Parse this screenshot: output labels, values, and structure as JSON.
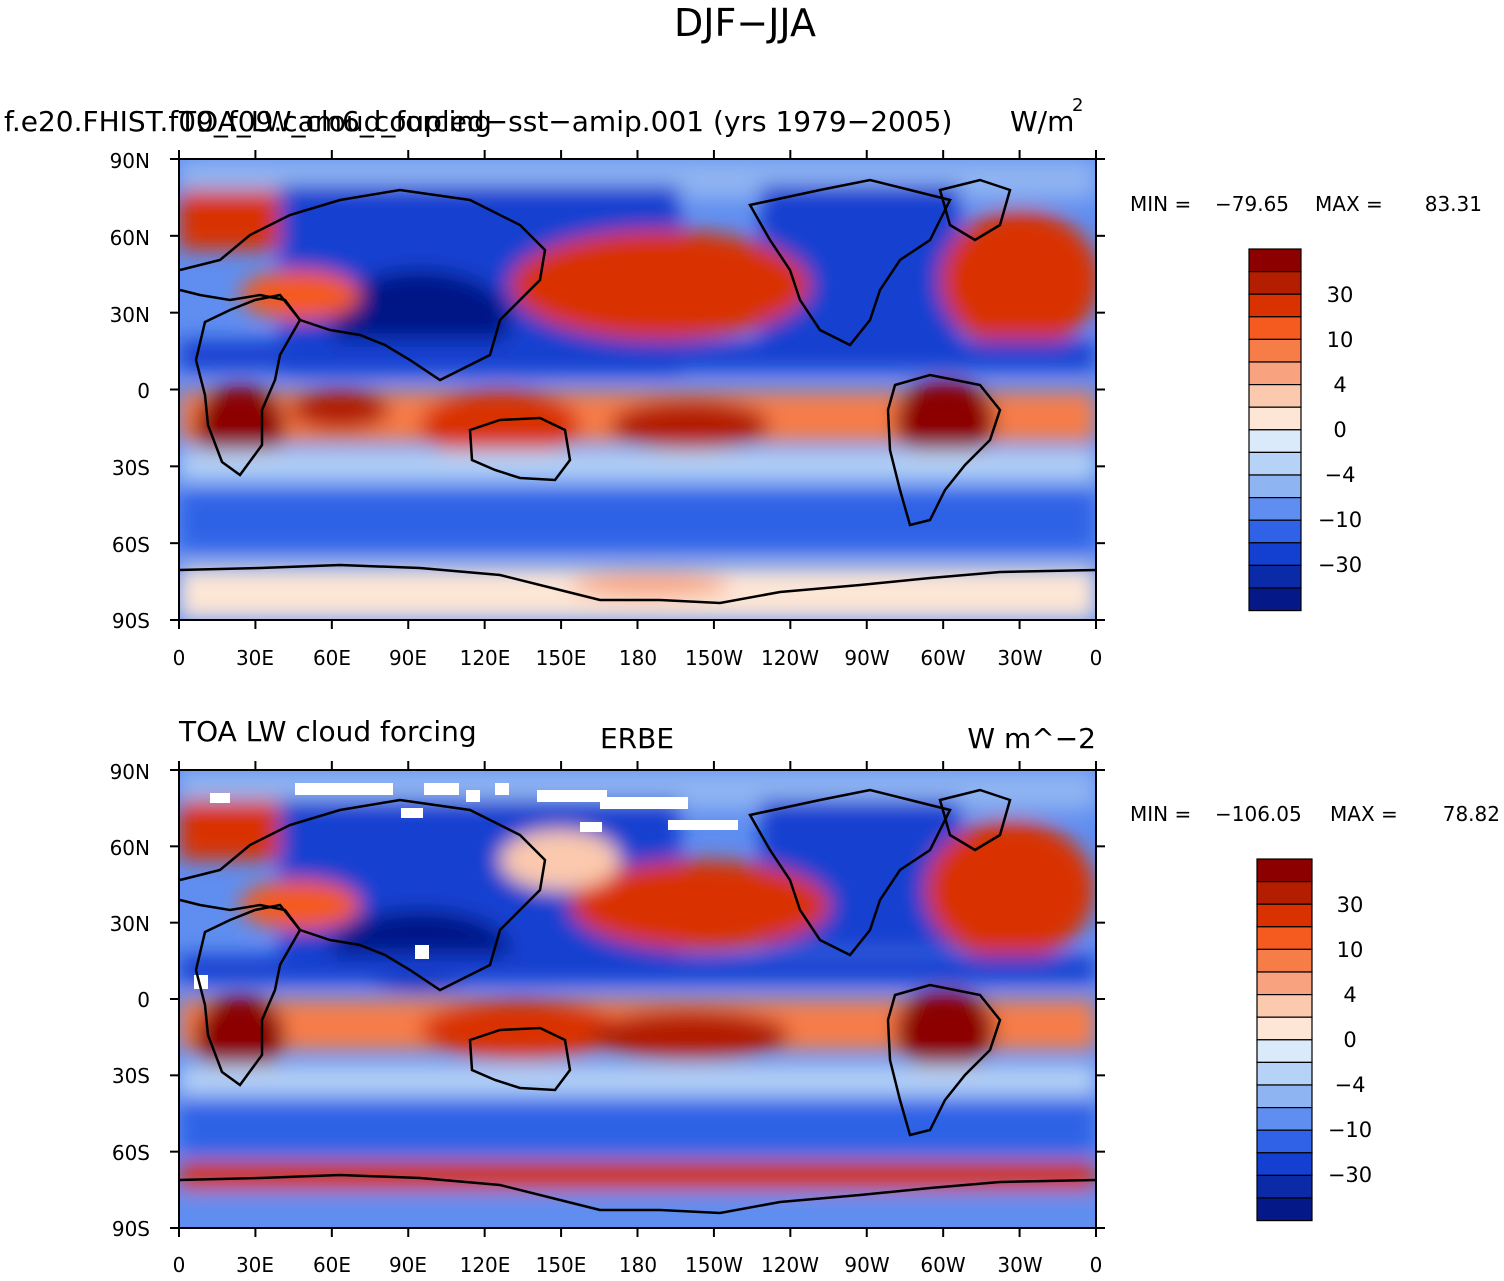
{
  "figure": {
    "title": "DJF−JJA"
  },
  "chart_data": [
    {
      "type": "heatmap",
      "title_left_a": "f.e20.FHIST.f09_f09.cam6_coupled−sst−amip.001 (yrs 1979−2005)",
      "title_left_b": "TOA_LW_cloud_forcing",
      "title_right": "W/m",
      "title_right_sup": "2",
      "stats": {
        "min_label": "MIN = ",
        "min": "−79.65",
        "max_label": "MAX = ",
        "max": "83.31"
      },
      "x_ticks": [
        "0",
        "30E",
        "60E",
        "90E",
        "120E",
        "150E",
        "180",
        "150W",
        "120W",
        "90W",
        "60W",
        "30W",
        "0"
      ],
      "y_ticks": [
        "90N",
        "60N",
        "30N",
        "0",
        "30S",
        "60S",
        "90S"
      ],
      "xlim": [
        0,
        360
      ],
      "ylim": [
        -90,
        90
      ],
      "colorbar_labels": [
        "30",
        "10",
        "4",
        "0",
        "−4",
        "−10",
        "−30"
      ],
      "field": [
        {
          "lat_band": "60N-90N",
          "value": -15
        },
        {
          "lat_band": "30N-60N (N Pacific)",
          "value": 25
        },
        {
          "lat_band": "0-30N",
          "value": -20
        },
        {
          "lat_band": "0-30S (tropics)",
          "value": 30
        },
        {
          "lat_band": "30S-60S",
          "value": -15
        },
        {
          "lat_band": "60S-90S",
          "value": 2
        }
      ]
    },
    {
      "type": "heatmap",
      "title_left": "TOA LW cloud forcing",
      "title_center": "ERBE",
      "title_right": "W m^−2",
      "stats": {
        "min_label": "MIN = ",
        "min": "−106.05",
        "max_label": "MAX = ",
        "max": "78.82"
      },
      "x_ticks": [
        "0",
        "30E",
        "60E",
        "90E",
        "120E",
        "150E",
        "180",
        "150W",
        "120W",
        "90W",
        "60W",
        "30W",
        "0"
      ],
      "y_ticks": [
        "90N",
        "60N",
        "30N",
        "0",
        "30S",
        "60S",
        "90S"
      ],
      "xlim": [
        0,
        360
      ],
      "ylim": [
        -90,
        90
      ],
      "colorbar_labels": [
        "30",
        "10",
        "4",
        "0",
        "−4",
        "−10",
        "−30"
      ],
      "field": [
        {
          "lat_band": "60N-90N",
          "value": -15
        },
        {
          "lat_band": "30N-60N (N Pacific)",
          "value": 20
        },
        {
          "lat_band": "0-30N",
          "value": -20
        },
        {
          "lat_band": "0-30S (tropics)",
          "value": 30
        },
        {
          "lat_band": "30S-60S",
          "value": -15
        },
        {
          "lat_band": "60S-75S",
          "value": 25
        }
      ]
    }
  ],
  "colorbar_colors": [
    "#8c0000",
    "#b31e00",
    "#d93100",
    "#f55a1e",
    "#f77d48",
    "#f9a27f",
    "#fbc9ad",
    "#fde6d6",
    "#dbeafb",
    "#b6d2f6",
    "#8fb4f2",
    "#5f8ef0",
    "#2f62e6",
    "#1340d0",
    "#0a2aa8",
    "#041887"
  ]
}
